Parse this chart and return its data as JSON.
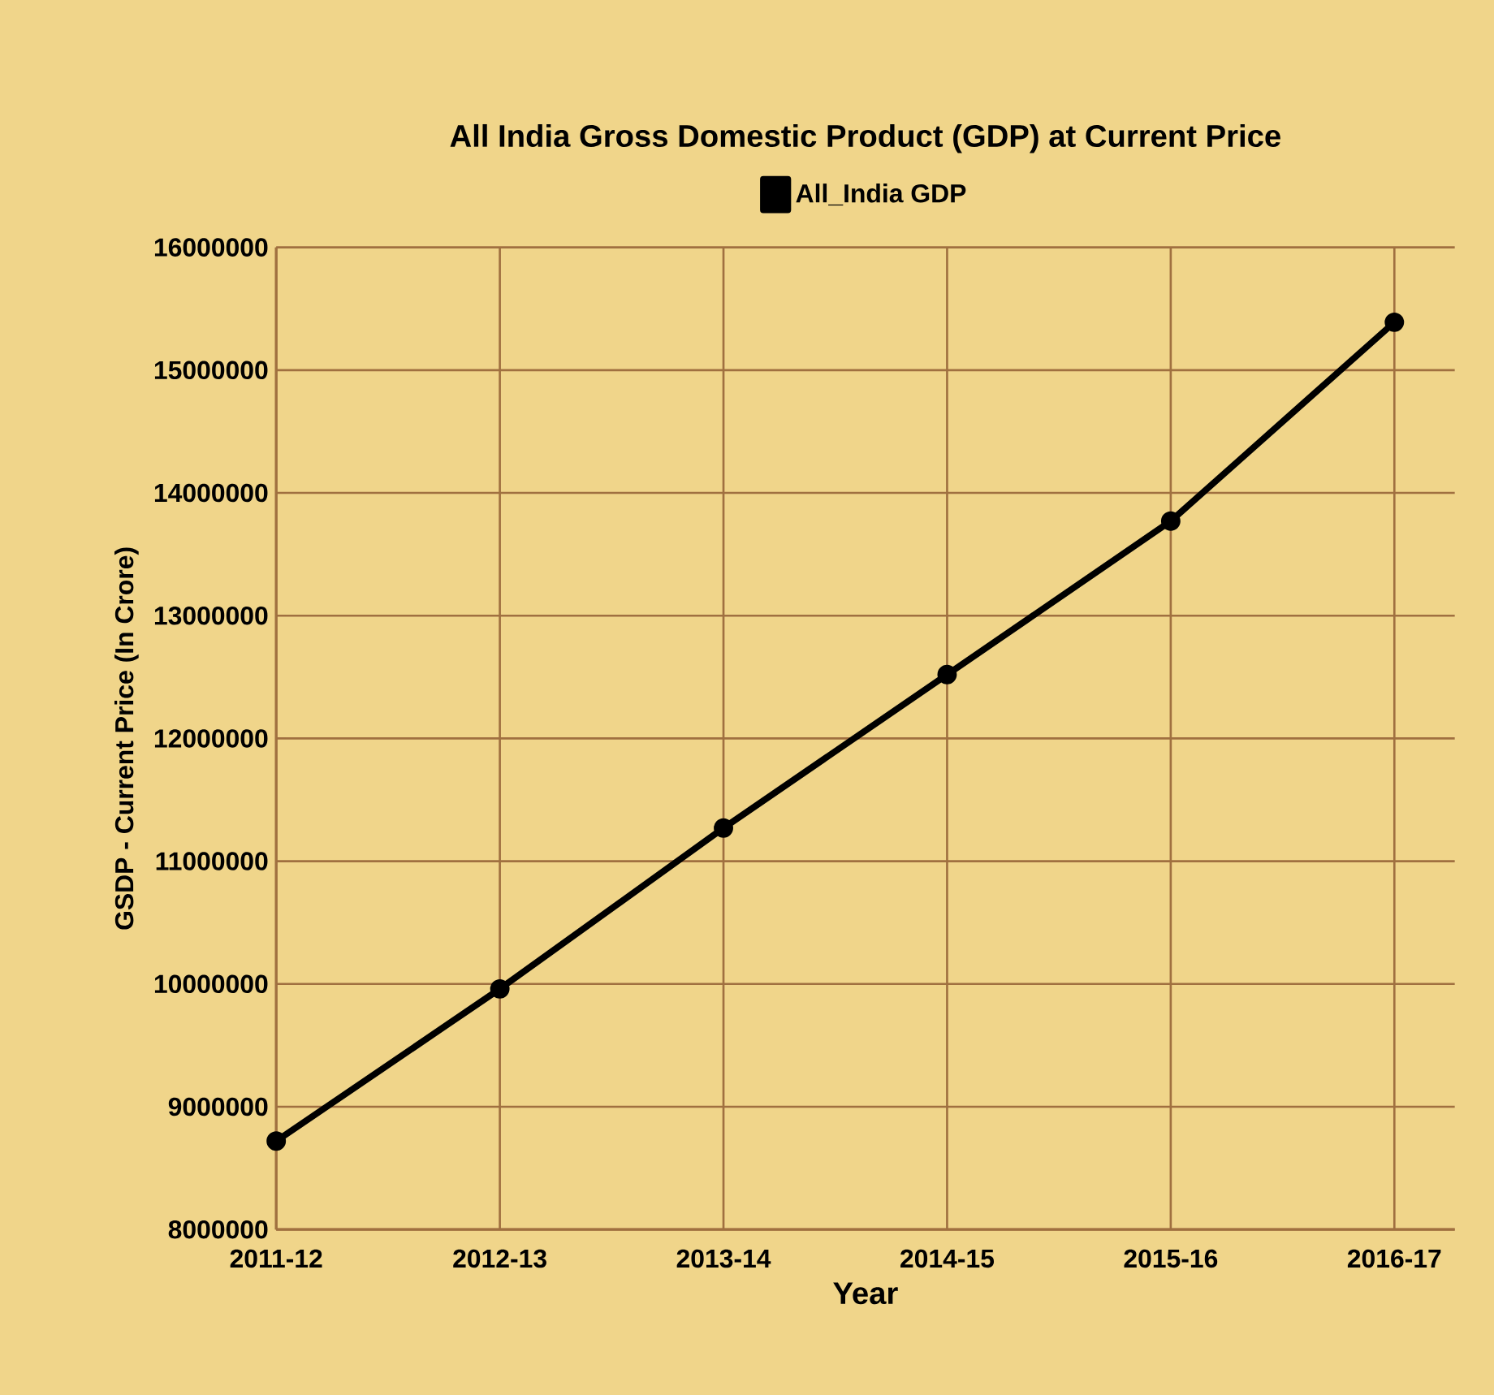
{
  "chart_data": {
    "type": "line",
    "title": "All India Gross Domestic Product (GDP) at Current Price",
    "xlabel": "Year",
    "ylabel": "GSDP - Current Price (In Crore)",
    "categories": [
      "2011-12",
      "2012-13",
      "2013-14",
      "2014-15",
      "2015-16",
      "2016-17"
    ],
    "series": [
      {
        "name": "All_India GDP",
        "color": "#000000",
        "values": [
          8720000,
          9960000,
          11270000,
          12520000,
          13770000,
          15390000
        ]
      }
    ],
    "ylim": [
      8000000,
      16000000
    ],
    "yticks": [
      8000000,
      9000000,
      10000000,
      11000000,
      12000000,
      13000000,
      14000000,
      15000000,
      16000000
    ],
    "grid": true,
    "legend": "top",
    "marker": "circle",
    "line_style": "solid"
  }
}
